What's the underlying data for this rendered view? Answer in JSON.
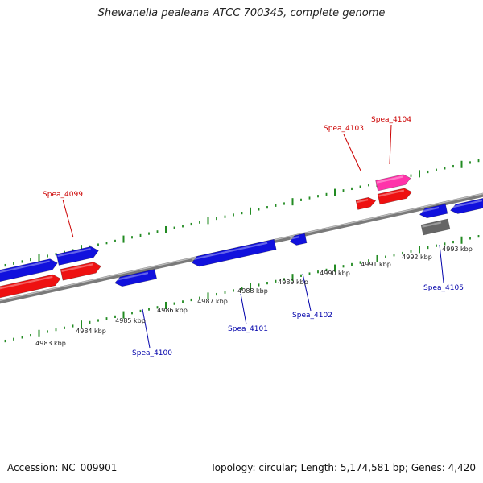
{
  "title": "Shewanella pealeana ATCC 700345, complete genome",
  "footer": {
    "accession": "Accession: NC_009901",
    "summary": "Topology: circular; Length: 5,174,581 bp; Genes: 4,420"
  },
  "colors": {
    "forward_cds": "#ee1111",
    "reverse_cds": "#1111dd",
    "forward_other": "#ff33aa",
    "reverse_other": "#666666",
    "backbone": "#888888",
    "gc_ticks": "#228b22",
    "forward_label": "#cc0000",
    "reverse_label": "#0000aa"
  },
  "scale_ticks": [
    "4983 kbp",
    "4984 kbp",
    "4985 kbp",
    "4986 kbp",
    "4987 kbp",
    "4988 kbp",
    "4989 kbp",
    "4990 kbp",
    "4991 kbp",
    "4992 kbp",
    "4993 kbp"
  ],
  "gene_labels": {
    "forward": [
      "Spea_4099",
      "Spea_4103",
      "Spea_4104"
    ],
    "reverse": [
      "Spea_4100",
      "Spea_4101",
      "Spea_4102",
      "Spea_4105"
    ]
  }
}
